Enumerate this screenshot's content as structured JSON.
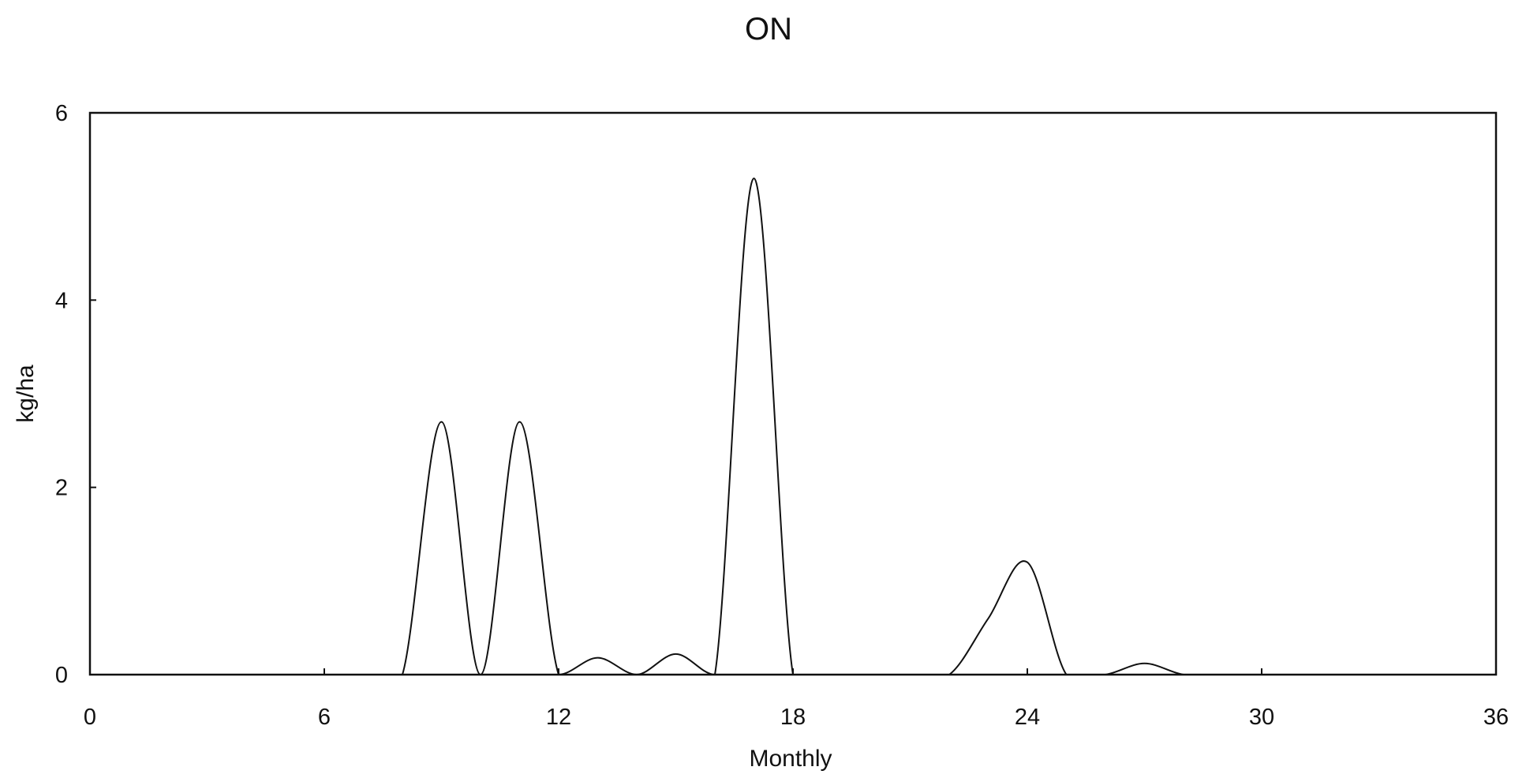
{
  "chart_data": {
    "type": "line",
    "title": "ON",
    "xlabel": "Monthly",
    "ylabel": "kg/ha",
    "xlim": [
      0,
      36
    ],
    "ylim": [
      0,
      6
    ],
    "x_ticks": [
      "0",
      "6",
      "12",
      "18",
      "24",
      "30",
      "36"
    ],
    "y_ticks": [
      "0",
      "2",
      "4",
      "6"
    ],
    "grid": false,
    "legend": "none",
    "series": [
      {
        "x": [
          0,
          1,
          2,
          3,
          4,
          5,
          6,
          7,
          8,
          9,
          10,
          11,
          12,
          13,
          14,
          15,
          16,
          17,
          18,
          19,
          20,
          21,
          22,
          23,
          24,
          25,
          26,
          27,
          28,
          29,
          30,
          31,
          32,
          33,
          34,
          35,
          36
        ],
        "values": [
          0,
          0,
          0,
          0,
          0,
          0,
          0,
          0,
          0,
          2.7,
          0,
          2.7,
          0,
          0.18,
          0,
          0.22,
          0,
          5.3,
          0,
          0,
          0,
          0,
          0,
          0.6,
          1.2,
          0,
          0,
          0.12,
          0,
          0,
          0,
          0,
          0,
          0,
          0,
          0,
          0
        ]
      }
    ]
  }
}
